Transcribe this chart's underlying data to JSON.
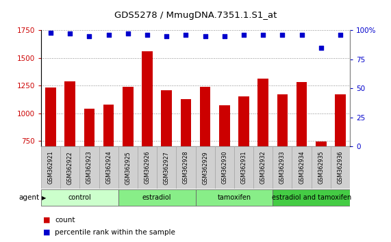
{
  "title": "GDS5278 / MmugDNA.7351.1.S1_at",
  "samples": [
    "GSM362921",
    "GSM362922",
    "GSM362923",
    "GSM362924",
    "GSM362925",
    "GSM362926",
    "GSM362927",
    "GSM362928",
    "GSM362929",
    "GSM362930",
    "GSM362931",
    "GSM362932",
    "GSM362933",
    "GSM362934",
    "GSM362935",
    "GSM362936"
  ],
  "count_values": [
    1230,
    1290,
    1040,
    1080,
    1240,
    1560,
    1210,
    1130,
    1240,
    1070,
    1150,
    1310,
    1170,
    1280,
    745,
    1170
  ],
  "percentile_values": [
    98,
    97,
    95,
    96,
    97,
    96,
    95,
    96,
    95,
    95,
    96,
    96,
    96,
    96,
    85,
    96
  ],
  "ylim_left": [
    700,
    1750
  ],
  "ylim_right": [
    0,
    100
  ],
  "yticks_left": [
    750,
    1000,
    1250,
    1500,
    1750
  ],
  "yticks_right": [
    0,
    25,
    50,
    75,
    100
  ],
  "bar_color": "#cc0000",
  "dot_color": "#0000cc",
  "groups": [
    {
      "label": "control",
      "start": 0,
      "end": 4,
      "color": "#ccffcc"
    },
    {
      "label": "estradiol",
      "start": 4,
      "end": 8,
      "color": "#88ee88"
    },
    {
      "label": "tamoxifen",
      "start": 8,
      "end": 12,
      "color": "#88ee88"
    },
    {
      "label": "estradiol and tamoxifen",
      "start": 12,
      "end": 16,
      "color": "#44cc44"
    }
  ],
  "group_row_label": "agent",
  "legend_count_label": "count",
  "legend_percentile_label": "percentile rank within the sample",
  "bar_color_legend": "#cc0000",
  "dot_color_legend": "#0000cc",
  "tick_color_left": "#cc0000",
  "tick_color_right": "#0000cc",
  "sample_box_color": "#d0d0d0",
  "grid_linestyle": "dotted",
  "grid_color": "#888888"
}
